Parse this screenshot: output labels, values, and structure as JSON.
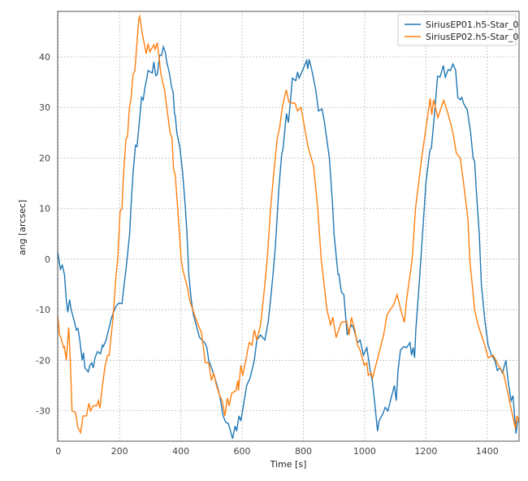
{
  "chart_data": {
    "type": "line",
    "title": "",
    "xlabel": "Time [s]",
    "ylabel": "ang [arcsec]",
    "xlim": [
      -2,
      1504
    ],
    "ylim": [
      -36,
      49
    ],
    "xticks": [
      0,
      200,
      400,
      600,
      800,
      1000,
      1200,
      1400
    ],
    "yticks": [
      -30,
      -20,
      -10,
      0,
      10,
      20,
      30,
      40
    ],
    "grid": true,
    "legend": "top-right",
    "series": [
      {
        "name": "SiriusEP01.h5-Star_0",
        "color": "#1f77b4",
        "x": [
          -2,
          7,
          13,
          20,
          26,
          31,
          37,
          42,
          51,
          59,
          64,
          70,
          78,
          82,
          87,
          98,
          103,
          109,
          114,
          120,
          128,
          138,
          144,
          147,
          156,
          164,
          172,
          180,
          189,
          197,
          208,
          213,
          221,
          228,
          233,
          237,
          244,
          252,
          257,
          263,
          272,
          277,
          283,
          288,
          293,
          301,
          307,
          312,
          318,
          323,
          331,
          337,
          343,
          349,
          354,
          362,
          370,
          375,
          379,
          382,
          387,
          397,
          406,
          415,
          420,
          426,
          434,
          441,
          450,
          461,
          478,
          485,
          491,
          503,
          516,
          527,
          538,
          547,
          555,
          569,
          577,
          582,
          590,
          596,
          604,
          615,
          626,
          640,
          648,
          660,
          674,
          685,
          693,
          701,
          709,
          720,
          729,
          734,
          740,
          745,
          751,
          756,
          764,
          775,
          781,
          786,
          795,
          811,
          814,
          819,
          828,
          841,
          849,
          861,
          869,
          878,
          885,
          896,
          900,
          913,
          916,
          924,
          932,
          943,
          957,
          963,
          977,
          985,
          996,
          1007,
          1018,
          1025,
          1032,
          1042,
          1047,
          1060,
          1067,
          1076,
          1084,
          1097,
          1103,
          1109,
          1117,
          1128,
          1137,
          1148,
          1153,
          1158,
          1163,
          1167,
          1178,
          1189,
          1200,
          1213,
          1218,
          1227,
          1238,
          1246,
          1257,
          1263,
          1273,
          1280,
          1288,
          1297,
          1304,
          1312,
          1317,
          1323,
          1335,
          1346,
          1354,
          1359,
          1365,
          1374,
          1381,
          1392,
          1403,
          1414,
          1425,
          1433,
          1442,
          1450,
          1461,
          1469,
          1478,
          1484,
          1494,
          1499
        ],
        "y": [
          1.5,
          -2,
          -1.2,
          -3,
          -8,
          -10.5,
          -8,
          -10,
          -12,
          -14,
          -13.7,
          -16,
          -20,
          -18.5,
          -21.5,
          -22.3,
          -21,
          -20.5,
          -21.5,
          -19.5,
          -18.3,
          -18.7,
          -17,
          -17.3,
          -16,
          -14,
          -12,
          -10.5,
          -9.3,
          -8.7,
          -8.8,
          -6,
          -2,
          2,
          5,
          10,
          17,
          22.5,
          22.3,
          26,
          32,
          31.5,
          34,
          35.5,
          37.3,
          37,
          36.8,
          39,
          36.3,
          36.5,
          40.3,
          40.3,
          42,
          41,
          39,
          37,
          34,
          33,
          29,
          28.3,
          25,
          22,
          17,
          10,
          5,
          -3,
          -8,
          -11,
          -13,
          -15.5,
          -16.5,
          -17.5,
          -20,
          -22,
          -24.5,
          -27,
          -31,
          -32.3,
          -32.5,
          -35.5,
          -33,
          -34,
          -31,
          -32,
          -29,
          -25,
          -23.5,
          -20,
          -16,
          -15,
          -16,
          -12.5,
          -8,
          -3,
          3,
          14,
          20.6,
          22,
          26,
          28.8,
          27,
          30,
          35.8,
          35.3,
          37,
          35.8,
          37,
          39.3,
          37.6,
          39.5,
          37.3,
          33.3,
          29.3,
          29.7,
          27,
          23,
          20,
          10,
          5,
          -3,
          -3,
          -6.5,
          -7,
          -15,
          -13,
          -13.5,
          -16.5,
          -16,
          -19,
          -17.5,
          -22,
          -24,
          -28,
          -34,
          -32,
          -30.5,
          -29.3,
          -30,
          -28,
          -25,
          -28,
          -22,
          -18,
          -17.3,
          -17.5,
          -16.5,
          -19,
          -17.5,
          -19.5,
          -14,
          -5,
          5,
          15,
          21.5,
          22,
          28,
          36.2,
          36,
          38.3,
          36,
          37.5,
          37.3,
          38.6,
          37.4,
          32,
          31.5,
          32,
          30.8,
          29.5,
          25,
          20,
          19.3,
          13,
          5,
          -5,
          -12,
          -17,
          -19,
          -20,
          -22,
          -21.5,
          -22.5,
          -20,
          -24.5,
          -28,
          -27,
          -34.5,
          -32
        ]
      },
      {
        "name": "SiriusEP02.h5-Star_0",
        "color": "#ff7f0e",
        "x": [
          -2,
          4,
          9,
          17,
          20,
          26,
          34,
          39,
          45,
          56,
          64,
          73,
          81,
          92,
          100,
          105,
          114,
          125,
          131,
          136,
          144,
          153,
          161,
          166,
          178,
          189,
          194,
          202,
          208,
          213,
          221,
          226,
          232,
          237,
          244,
          250,
          257,
          263,
          266,
          274,
          287,
          293,
          299,
          312,
          316,
          323,
          329,
          334,
          348,
          354,
          365,
          371,
          376,
          382,
          390,
          401,
          406,
          423,
          428,
          450,
          467,
          480,
          491,
          500,
          507,
          516,
          527,
          535,
          544,
          552,
          558,
          566,
          580,
          586,
          588,
          596,
          602,
          612,
          623,
          632,
          640,
          648,
          660,
          671,
          682,
          693,
          704,
          715,
          723,
          731,
          744,
          753,
          773,
          781,
          792,
          801,
          816,
          833,
          847,
          858,
          877,
          889,
          896,
          907,
          924,
          941,
          949,
          957,
          968,
          977,
          985,
          999,
          1007,
          1012,
          1021,
          1026,
          1045,
          1062,
          1073,
          1095,
          1106,
          1122,
          1130,
          1137,
          1155,
          1166,
          1186,
          1214,
          1219,
          1225,
          1239,
          1247,
          1258,
          1271,
          1282,
          1291,
          1299,
          1312,
          1323,
          1337,
          1343,
          1359,
          1370,
          1392,
          1403,
          1420,
          1436,
          1453,
          1469,
          1492,
          1497,
          1505
        ],
        "y": [
          -11,
          -15,
          -15.5,
          -17.5,
          -17.3,
          -20,
          -13.5,
          -20,
          -30,
          -30.3,
          -33.3,
          -34.3,
          -31,
          -31,
          -28.5,
          -30,
          -29,
          -29,
          -28,
          -29.5,
          -25,
          -21,
          -19,
          -19,
          -12,
          -3,
          0,
          9.5,
          10,
          17,
          23.8,
          24.2,
          30,
          31.5,
          36.6,
          37.2,
          43,
          47.5,
          48,
          44.7,
          40.6,
          42.6,
          41,
          42.4,
          41.5,
          42.8,
          40,
          37,
          33,
          30,
          25,
          24,
          18,
          16.5,
          10,
          0,
          -2,
          -6,
          -8,
          -12,
          -14.5,
          -20.5,
          -20.5,
          -24,
          -22.5,
          -25,
          -27,
          -28,
          -31,
          -27.5,
          -29,
          -26.5,
          -26,
          -24,
          -26,
          -21,
          -23,
          -20,
          -16.5,
          -17,
          -14,
          -16,
          -13,
          -7,
          0,
          10,
          17.5,
          24,
          26.2,
          30,
          33.5,
          31,
          30.8,
          29.3,
          30,
          27,
          22,
          18.5,
          10,
          0,
          -10,
          -13,
          -11.5,
          -15.5,
          -12.5,
          -12.3,
          -15,
          -11.5,
          -14,
          -17,
          -18,
          -21,
          -20.5,
          -23,
          -22.5,
          -23.5,
          -19,
          -15,
          -11,
          -9,
          -7,
          -11,
          -12.5,
          -8,
          0,
          10,
          20,
          31.8,
          28.5,
          31.5,
          28,
          29.5,
          31.4,
          29,
          26.5,
          24,
          21,
          20,
          15,
          8,
          0,
          -10,
          -13,
          -17,
          -19.5,
          -19,
          -21,
          -22.5,
          -27,
          -33.5,
          -31,
          -32.5
        ]
      }
    ]
  }
}
